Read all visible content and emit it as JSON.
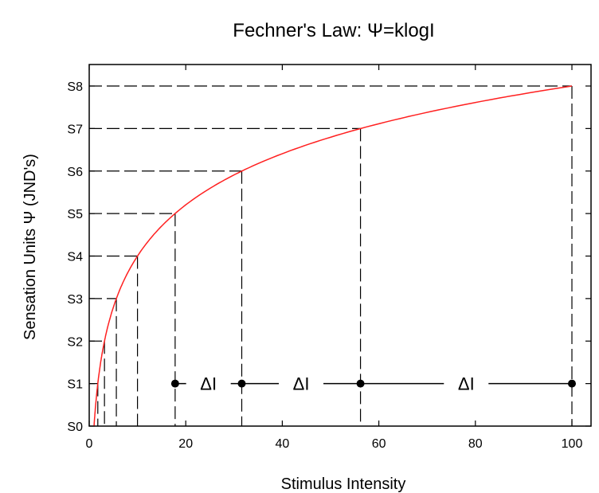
{
  "chart_data": {
    "type": "line",
    "title": "Fechner's Law:  Ψ=klogI",
    "xlabel": "Stimulus Intensity",
    "ylabel": "Sensation Units Ψ  (JND's)",
    "xlim": [
      0,
      105
    ],
    "ylim": [
      0,
      8.5
    ],
    "x_ticks": [
      0,
      20,
      40,
      60,
      80,
      100
    ],
    "x_tick_labels": [
      "0",
      "20",
      "40",
      "60",
      "80",
      "100"
    ],
    "y_ticks": [
      0,
      1,
      2,
      3,
      4,
      5,
      6,
      7,
      8
    ],
    "y_tick_labels": [
      "S0",
      "S1",
      "S2",
      "S3",
      "S4",
      "S5",
      "S6",
      "S7",
      "S8"
    ],
    "grid": false,
    "series": [
      {
        "color": "#ff2020",
        "x": [
          1,
          1.78,
          3.16,
          5.62,
          10,
          17.8,
          31.6,
          56.2,
          100
        ],
        "y": [
          0,
          1,
          2,
          3,
          4,
          5,
          6,
          7,
          8
        ]
      }
    ],
    "reference_points": [
      {
        "x": 1.78,
        "y": 1
      },
      {
        "x": 3.16,
        "y": 2
      },
      {
        "x": 5.62,
        "y": 3
      },
      {
        "x": 10,
        "y": 4
      },
      {
        "x": 17.8,
        "y": 5
      },
      {
        "x": 31.6,
        "y": 6
      },
      {
        "x": 56.2,
        "y": 7
      },
      {
        "x": 100,
        "y": 8
      }
    ],
    "delta_markers": {
      "y": 1,
      "points": [
        17.8,
        31.6,
        56.2,
        100
      ],
      "label": "ΔI"
    }
  }
}
